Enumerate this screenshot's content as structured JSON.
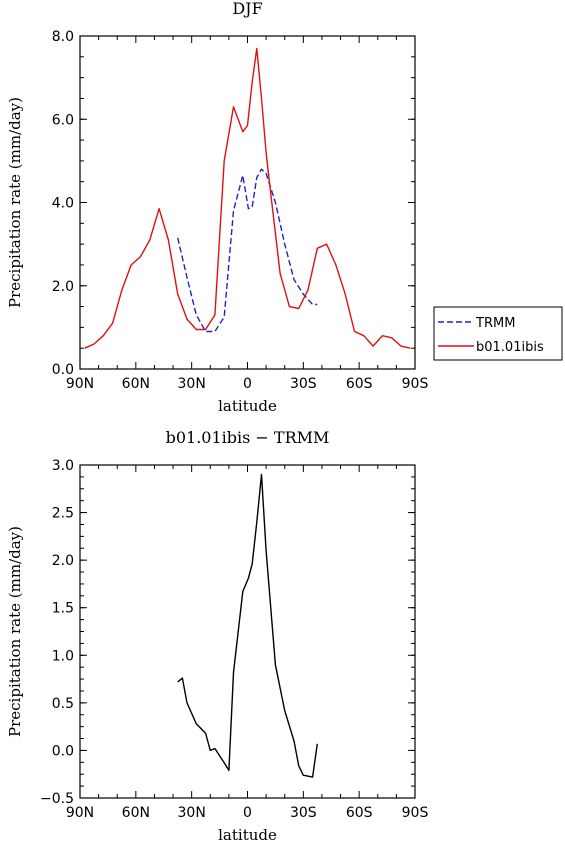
{
  "chart_data": [
    {
      "type": "line",
      "title": "DJF",
      "xlabel": "latitude",
      "ylabel": "Precipitation rate (mm/day)",
      "xlim": [
        90,
        -90
      ],
      "ylim": [
        0,
        8
      ],
      "x_ticks": [
        90,
        60,
        30,
        0,
        -30,
        -60,
        -90
      ],
      "x_tick_labels": [
        "90N",
        "60N",
        "30N",
        "0",
        "30S",
        "60S",
        "90S"
      ],
      "y_ticks": [
        0,
        2,
        4,
        6,
        8
      ],
      "y_tick_labels": [
        "0.0",
        "2.0",
        "4.0",
        "6.0",
        "8.0"
      ],
      "legend_position": "right",
      "series": [
        {
          "name": "TRMM",
          "color": "#2222cc",
          "dash": true,
          "x": [
            37.5,
            32.5,
            27.5,
            22.5,
            17.5,
            12.5,
            7.5,
            2.5,
            -0.5,
            -2.5,
            -5,
            -7.5,
            -10,
            -15,
            -20,
            -25,
            -30,
            -35,
            -37.5
          ],
          "y": [
            3.15,
            2.2,
            1.3,
            0.9,
            0.9,
            1.25,
            3.8,
            4.65,
            3.85,
            3.9,
            4.6,
            4.8,
            4.7,
            4.0,
            3.0,
            2.15,
            1.8,
            1.55,
            1.55
          ]
        },
        {
          "name": "b01.01ibis",
          "color": "#dd1111",
          "dash": false,
          "x": [
            87.5,
            82.5,
            77.5,
            72.5,
            67.5,
            62.5,
            57.5,
            52.5,
            47.5,
            42.5,
            37.5,
            32.5,
            27.5,
            22.5,
            17.5,
            12.5,
            7.5,
            2.5,
            0,
            -2.5,
            -5,
            -7.5,
            -10,
            -12.5,
            -17.5,
            -22.5,
            -27.5,
            -32.5,
            -37.5,
            -42.5,
            -47.5,
            -52.5,
            -57.5,
            -62.5,
            -67.5,
            -72.5,
            -77.5,
            -82.5,
            -87.5
          ],
          "y": [
            0.5,
            0.6,
            0.8,
            1.1,
            1.9,
            2.5,
            2.7,
            3.1,
            3.85,
            3.1,
            1.8,
            1.2,
            0.95,
            0.95,
            1.3,
            5.0,
            6.3,
            5.7,
            5.85,
            6.9,
            7.7,
            6.5,
            5.2,
            4.2,
            2.3,
            1.5,
            1.45,
            1.9,
            2.9,
            3.0,
            2.5,
            1.8,
            0.9,
            0.8,
            0.55,
            0.8,
            0.75,
            0.55,
            0.5
          ]
        }
      ]
    },
    {
      "type": "line",
      "title": "b01.01ibis − TRMM",
      "xlabel": "latitude",
      "ylabel": "Precipitation rate (mm/day)",
      "xlim": [
        90,
        -90
      ],
      "ylim": [
        -0.5,
        3.0
      ],
      "x_ticks": [
        90,
        60,
        30,
        0,
        -30,
        -60,
        -90
      ],
      "x_tick_labels": [
        "90N",
        "60N",
        "30N",
        "0",
        "30S",
        "60S",
        "90S"
      ],
      "y_ticks": [
        -0.5,
        0,
        0.5,
        1.0,
        1.5,
        2.0,
        2.5,
        3.0
      ],
      "y_tick_labels": [
        "−0.5",
        "0.0",
        "0.5",
        "1.0",
        "1.5",
        "2.0",
        "2.5",
        "3.0"
      ],
      "series": [
        {
          "color": "#000000",
          "dash": false,
          "x": [
            37.5,
            35,
            32.5,
            27.5,
            22.5,
            20,
            17.5,
            12.5,
            10,
            7.5,
            2.5,
            -0.5,
            -2.5,
            -5,
            -7.5,
            -10,
            -15,
            -20,
            -25,
            -27.5,
            -30,
            -35,
            -37.5
          ],
          "y": [
            0.72,
            0.76,
            0.5,
            0.28,
            0.18,
            0.0,
            0.02,
            -0.13,
            -0.21,
            0.82,
            1.67,
            1.81,
            1.96,
            2.4,
            2.9,
            2.1,
            0.9,
            0.42,
            0.1,
            -0.16,
            -0.26,
            -0.28,
            0.07
          ]
        }
      ]
    }
  ]
}
